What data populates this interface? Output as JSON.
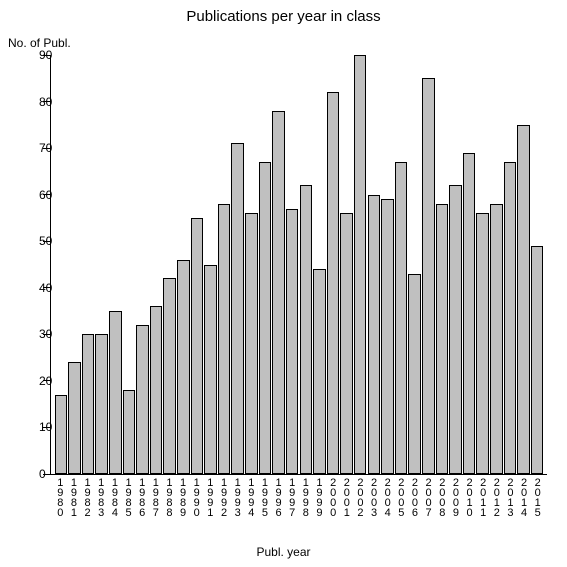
{
  "chart": {
    "type": "bar",
    "title": "Publications per year in class",
    "title_fontsize": 15,
    "ylabel": "No. of Publ.",
    "xlabel": "Publ. year",
    "label_fontsize": 12,
    "tick_fontsize": 12,
    "xtick_fontsize": 11,
    "background_color": "#ffffff",
    "bar_fill_color": "#c0c0c0",
    "bar_border_color": "#000000",
    "axis_color": "#000000",
    "text_color": "#000000",
    "ylim": [
      0,
      90
    ],
    "ytick_step": 10,
    "yticks": [
      0,
      10,
      20,
      30,
      40,
      50,
      60,
      70,
      80,
      90
    ],
    "bar_width_ratio": 0.92,
    "categories": [
      "1980",
      "1981",
      "1982",
      "1983",
      "1984",
      "1985",
      "1986",
      "1987",
      "1988",
      "1989",
      "1990",
      "1991",
      "1992",
      "1993",
      "1994",
      "1995",
      "1996",
      "1997",
      "1998",
      "1999",
      "2000",
      "2001",
      "2002",
      "2003",
      "2004",
      "2005",
      "2006",
      "2007",
      "2008",
      "2009",
      "2010",
      "2011",
      "2012",
      "2013",
      "2014",
      "2015"
    ],
    "values": [
      17,
      24,
      30,
      30,
      35,
      18,
      32,
      36,
      42,
      46,
      55,
      45,
      58,
      71,
      56,
      67,
      78,
      57,
      62,
      44,
      82,
      56,
      90,
      60,
      59,
      67,
      43,
      85,
      58,
      62,
      69,
      56,
      58,
      67,
      75,
      49
    ]
  }
}
